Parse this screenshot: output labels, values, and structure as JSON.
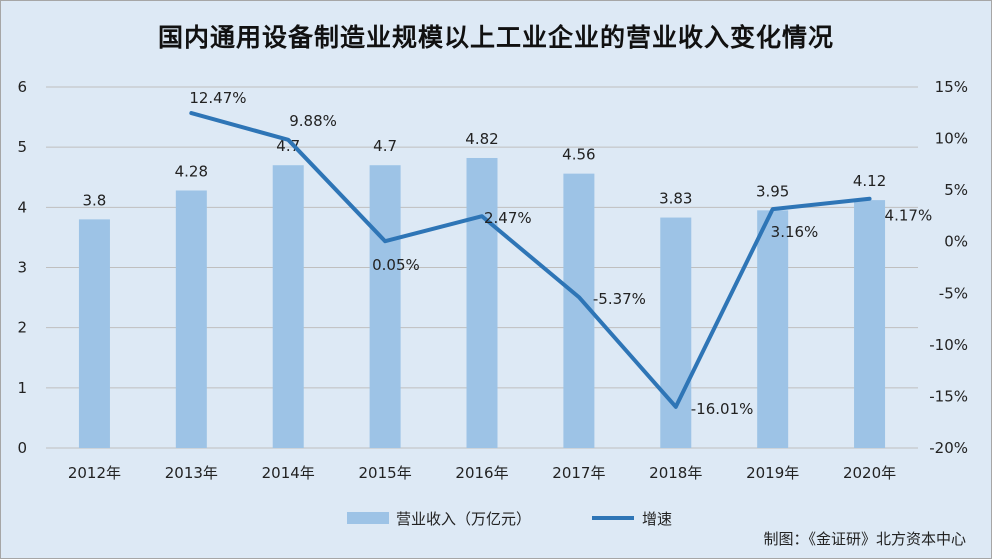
{
  "chart_data": {
    "type": "bar",
    "title": "国内通用设备制造业规模以上工业企业的营业收入变化情况",
    "categories": [
      "2012年",
      "2013年",
      "2014年",
      "2015年",
      "2016年",
      "2017年",
      "2018年",
      "2019年",
      "2020年"
    ],
    "series": [
      {
        "name": "营业收入（万亿元）",
        "type": "bar",
        "axis": "left",
        "values": [
          3.8,
          4.28,
          4.7,
          4.7,
          4.82,
          4.56,
          3.83,
          3.95,
          4.12
        ],
        "labels": [
          "3.8",
          "4.28",
          "4.7",
          "4.7",
          "4.82",
          "4.56",
          "3.83",
          "3.95",
          "4.12"
        ]
      },
      {
        "name": "增速",
        "type": "line",
        "axis": "right",
        "values": [
          null,
          12.47,
          9.88,
          0.05,
          2.47,
          -5.37,
          -16.01,
          3.16,
          4.17
        ],
        "labels": [
          "",
          "12.47%",
          "9.88%",
          "0.05%",
          "2.47%",
          "-5.37%",
          "-16.01%",
          "3.16%",
          "4.17%"
        ]
      }
    ],
    "ylim_left": [
      0,
      6
    ],
    "ylim_right": [
      -20,
      15
    ],
    "left_ticks": [
      "0",
      "1",
      "2",
      "3",
      "4",
      "5",
      "6"
    ],
    "right_ticks": [
      "-20%",
      "-15%",
      "-10%",
      "-5%",
      "0%",
      "5%",
      "10%",
      "15%"
    ],
    "grid": true,
    "legend_position": "bottom",
    "colors": {
      "bar": "#9dc3e6",
      "line": "#2e75b6",
      "grid": "#bfbfbf",
      "background": "#dde9f5"
    }
  },
  "credit": "制图：《金证研》北方资本中心"
}
